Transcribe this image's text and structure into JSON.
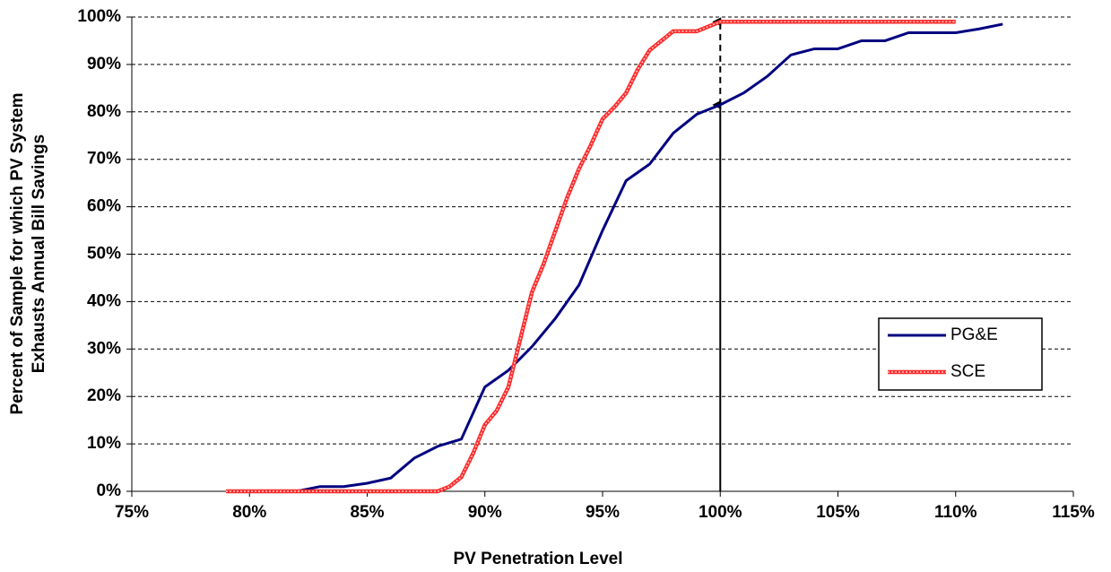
{
  "chart_data": {
    "type": "line",
    "xlabel": "PV Penetration Level",
    "ylabel": [
      "Percent of Sample for which PV System",
      "Exhausts Annual Bill Savings"
    ],
    "xlim": [
      75,
      115
    ],
    "ylim": [
      0,
      100
    ],
    "xticks": [
      {
        "value": 75,
        "label": "75%"
      },
      {
        "value": 80,
        "label": "80%"
      },
      {
        "value": 85,
        "label": "85%"
      },
      {
        "value": 90,
        "label": "90%"
      },
      {
        "value": 95,
        "label": "95%"
      },
      {
        "value": 100,
        "label": "100%"
      },
      {
        "value": 105,
        "label": "105%"
      },
      {
        "value": 110,
        "label": "110%"
      },
      {
        "value": 115,
        "label": "115%"
      }
    ],
    "yticks": [
      {
        "value": 0,
        "label": "0%"
      },
      {
        "value": 10,
        "label": "10%"
      },
      {
        "value": 20,
        "label": "20%"
      },
      {
        "value": 30,
        "label": "30%"
      },
      {
        "value": 40,
        "label": "40%"
      },
      {
        "value": 50,
        "label": "50%"
      },
      {
        "value": 60,
        "label": "60%"
      },
      {
        "value": 70,
        "label": "70%"
      },
      {
        "value": 80,
        "label": "80%"
      },
      {
        "value": 90,
        "label": "90%"
      },
      {
        "value": 100,
        "label": "100%"
      }
    ],
    "grid": true,
    "legend": "right",
    "series": [
      {
        "name": "PG&E",
        "color": "#000080",
        "x": [
          82,
          83,
          84,
          85,
          86,
          87,
          88,
          89,
          90,
          91,
          92,
          93,
          94,
          95,
          96,
          97,
          98,
          99,
          100,
          101,
          102,
          103,
          104,
          105,
          106,
          107,
          108,
          109,
          110,
          111,
          112
        ],
        "values": [
          0,
          1,
          1,
          1.7,
          2.8,
          7,
          9.5,
          11,
          22,
          25.5,
          30.5,
          36.5,
          43.5,
          55,
          65.5,
          69,
          75.5,
          79.5,
          81.5,
          84,
          87.5,
          92,
          93.3,
          93.3,
          95,
          95,
          96.7,
          96.7,
          96.7,
          97.5,
          98.5
        ]
      },
      {
        "name": "SCE",
        "color": "#ff2a2a",
        "x": [
          79,
          80,
          81,
          82,
          83,
          84,
          85,
          86,
          87,
          88,
          88.5,
          89,
          89.5,
          90,
          90.5,
          91,
          91.5,
          92,
          92.5,
          93,
          93.5,
          94,
          94.5,
          95,
          95.5,
          96,
          96.5,
          97,
          97.5,
          98,
          98.5,
          99,
          99.5,
          100,
          101,
          102,
          103,
          104,
          105,
          106,
          107,
          108,
          109,
          110
        ],
        "values": [
          0,
          0,
          0,
          0,
          0,
          0,
          0,
          0,
          0,
          0,
          1,
          3,
          8,
          14,
          17,
          22,
          32,
          42,
          48,
          55,
          62,
          68,
          73,
          78.5,
          81,
          84,
          89,
          93,
          95,
          97,
          97,
          97,
          98,
          99,
          99,
          99,
          99,
          99,
          99,
          99,
          99,
          99,
          99,
          99
        ]
      }
    ],
    "arrows": [
      {
        "x": 100,
        "y0": 0,
        "y1": 81.5,
        "style": "solid"
      },
      {
        "x": 100,
        "y0": 81.5,
        "y1": 99,
        "style": "dashed"
      }
    ]
  }
}
